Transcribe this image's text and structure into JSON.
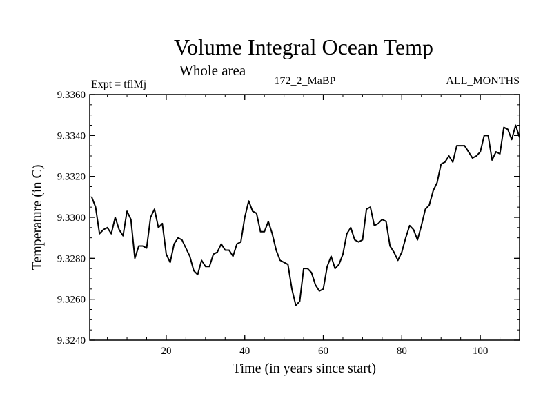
{
  "chart_data": {
    "type": "line",
    "title": "Volume Integral Ocean Temp",
    "subtitle": "Whole area",
    "experiment": "Expt = tflMj",
    "run_label": "172_2_MaBP",
    "period_label": "ALL_MONTHS",
    "xlabel": "Time (in years since start)",
    "ylabel": "Temperature (in C)",
    "xlim": [
      0.5,
      110
    ],
    "ylim": [
      9.324,
      9.336
    ],
    "x_ticks": [
      20,
      40,
      60,
      80,
      100
    ],
    "x_tick_labels": [
      "20",
      "40",
      "60",
      "80",
      "100"
    ],
    "y_ticks": [
      9.324,
      9.326,
      9.328,
      9.33,
      9.332,
      9.334,
      9.336
    ],
    "y_tick_labels": [
      "9.3240",
      "9.3260",
      "9.3280",
      "9.3300",
      "9.3320",
      "9.3340",
      "9.3360"
    ],
    "grid": false,
    "series": [
      {
        "name": "Volume integral ocean temperature",
        "color": "#000000",
        "x": [
          1,
          2,
          3,
          4,
          5,
          6,
          7,
          8,
          9,
          10,
          11,
          12,
          13,
          14,
          15,
          16,
          17,
          18,
          19,
          20,
          21,
          22,
          23,
          24,
          25,
          26,
          27,
          28,
          29,
          30,
          31,
          32,
          33,
          34,
          35,
          36,
          37,
          38,
          39,
          40,
          41,
          42,
          43,
          44,
          45,
          46,
          47,
          48,
          49,
          50,
          51,
          52,
          53,
          54,
          55,
          56,
          57,
          58,
          59,
          60,
          61,
          62,
          63,
          64,
          65,
          66,
          67,
          68,
          69,
          70,
          71,
          72,
          73,
          74,
          75,
          76,
          77,
          78,
          79,
          80,
          81,
          82,
          83,
          84,
          85,
          86,
          87,
          88,
          89,
          90,
          91,
          92,
          93,
          94,
          95,
          96,
          97,
          98,
          99,
          100,
          101,
          102,
          103,
          104,
          105,
          106,
          107,
          108,
          109,
          110
        ],
        "values": [
          9.331,
          9.3305,
          9.3292,
          9.3294,
          9.3295,
          9.3292,
          9.33,
          9.3294,
          9.3291,
          9.3303,
          9.3299,
          9.328,
          9.3286,
          9.3286,
          9.3285,
          9.33,
          9.3304,
          9.3295,
          9.3297,
          9.3282,
          9.3278,
          9.3287,
          9.329,
          9.3289,
          9.3285,
          9.3281,
          9.3274,
          9.3272,
          9.3279,
          9.3276,
          9.3276,
          9.3282,
          9.3283,
          9.3287,
          9.3284,
          9.3284,
          9.3281,
          9.3287,
          9.3288,
          9.33,
          9.3308,
          9.3303,
          9.3302,
          9.3293,
          9.3293,
          9.3298,
          9.3292,
          9.3284,
          9.3279,
          9.3278,
          9.3277,
          9.3265,
          9.3257,
          9.3259,
          9.3275,
          9.3275,
          9.3273,
          9.3267,
          9.3264,
          9.3265,
          9.3276,
          9.3281,
          9.3275,
          9.3277,
          9.3282,
          9.3292,
          9.3295,
          9.3289,
          9.3288,
          9.3289,
          9.3304,
          9.3305,
          9.3296,
          9.3297,
          9.3299,
          9.3298,
          9.3286,
          9.3283,
          9.3279,
          9.3283,
          9.329,
          9.3296,
          9.3294,
          9.3289,
          9.3296,
          9.3304,
          9.3306,
          9.3313,
          9.3317,
          9.3326,
          9.3327,
          9.333,
          9.3327,
          9.3335,
          9.3335,
          9.3335,
          9.3332,
          9.3329,
          9.333,
          9.3332,
          9.334,
          9.334,
          9.3328,
          9.3332,
          9.3331,
          9.3344,
          9.3343,
          9.3338,
          9.3345,
          9.3339
        ]
      }
    ]
  }
}
